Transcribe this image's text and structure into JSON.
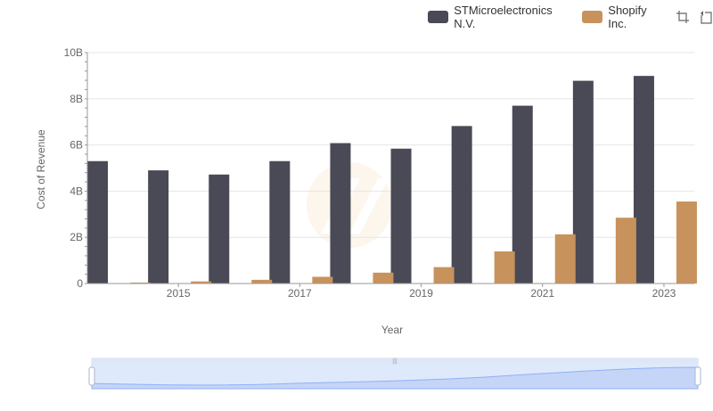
{
  "legend": {
    "series": [
      {
        "name": "STMicroelectronics N.V.",
        "color": "#4a4a56"
      },
      {
        "name": "Shopify Inc.",
        "color": "#c8925c"
      }
    ]
  },
  "toolbox": {
    "icons": [
      "zoom-icon",
      "restore-icon"
    ]
  },
  "chart_data": {
    "type": "bar",
    "xlabel": "Year",
    "ylabel": "Cost of Revenue",
    "x": [
      2014,
      2015,
      2016,
      2017,
      2018,
      2019,
      2020,
      2021,
      2022,
      2023
    ],
    "x_tick_labels": [
      "2015",
      "2017",
      "2019",
      "2021",
      "2023"
    ],
    "y_tick_labels": [
      "0",
      "2B",
      "4B",
      "6B",
      "8B",
      "10B"
    ],
    "ylim": [
      0,
      10000000000
    ],
    "grid": true,
    "legend_position": "top-right",
    "series": [
      {
        "name": "STMicroelectronics N.V.",
        "color": "#4a4a56",
        "values": [
          5300000000,
          4900000000,
          4720000000,
          5300000000,
          6080000000,
          5840000000,
          6820000000,
          7700000000,
          8780000000,
          8990000000
        ]
      },
      {
        "name": "Shopify Inc.",
        "color": "#c8925c",
        "values": [
          40000000,
          90000000,
          160000000,
          290000000,
          470000000,
          710000000,
          1390000000,
          2130000000,
          2850000000,
          3550000000
        ]
      }
    ]
  }
}
